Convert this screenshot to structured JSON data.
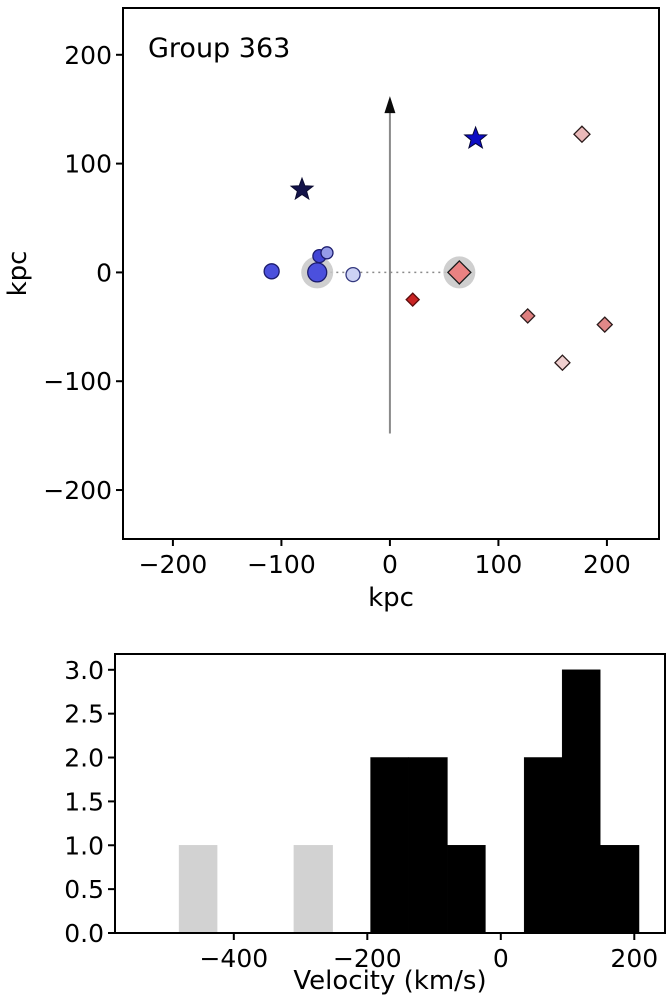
{
  "figure": {
    "background": "#ffffff",
    "title": "Group 363"
  },
  "chart_data": [
    {
      "id": "position-scatter",
      "type": "scatter",
      "title": "Group 363",
      "xlabel": "kpc",
      "ylabel": "kpc",
      "xlim": [
        -246,
        248
      ],
      "ylim": [
        -245,
        243
      ],
      "grid": false,
      "legend": null,
      "xticks": [
        {
          "v": -200,
          "label": "−200"
        },
        {
          "v": -100,
          "label": "−100"
        },
        {
          "v": 0,
          "label": "0"
        },
        {
          "v": 100,
          "label": "100"
        },
        {
          "v": 200,
          "label": "200"
        }
      ],
      "yticks": [
        {
          "v": 200,
          "label": "200"
        },
        {
          "v": 100,
          "label": "100"
        },
        {
          "v": 0,
          "label": "0"
        },
        {
          "v": -100,
          "label": "−100"
        },
        {
          "v": -200,
          "label": "−200"
        }
      ],
      "arrow": {
        "x": 0,
        "y_from": -148,
        "y_to": 162,
        "line_color": "#8a8a8a",
        "head_color": "#0a0a0a"
      },
      "connector": {
        "x0": -66,
        "y0": 0,
        "x1": 64,
        "y1": 0,
        "style": "dotted",
        "color": "#8a8a8a"
      },
      "halo_color": "#c7c7c7",
      "points": [
        {
          "shape": "star",
          "x": -81,
          "y": 76,
          "size": 11.5,
          "fill": "#13134a",
          "edge": "#0b0b30",
          "halo": false
        },
        {
          "shape": "star",
          "x": 79,
          "y": 123,
          "size": 11.5,
          "fill": "#0d0dc4",
          "edge": "#050538",
          "halo": false
        },
        {
          "shape": "circle",
          "x": -109,
          "y": 1,
          "size": 7.5,
          "fill": "#4b50dd",
          "edge": "#1c1c6e",
          "halo": false
        },
        {
          "shape": "circle",
          "x": -67,
          "y": 0,
          "size": 9.5,
          "fill": "#4b50dd",
          "edge": "#1c1c6e",
          "halo": true
        },
        {
          "shape": "circle",
          "x": -65,
          "y": 15,
          "size": 6.5,
          "fill": "#4245d5",
          "edge": "#1c1c6e",
          "halo": false
        },
        {
          "shape": "circle",
          "x": -58,
          "y": 18,
          "size": 6,
          "fill": "#959ce8",
          "edge": "#1c1c6e",
          "halo": false
        },
        {
          "shape": "circle",
          "x": -34,
          "y": -2,
          "size": 7,
          "fill": "#cdd2f4",
          "edge": "#33387e",
          "halo": false
        },
        {
          "shape": "diamond",
          "x": 64,
          "y": 0,
          "size": 11.5,
          "fill": "#e98282",
          "edge": "#1a1a1a",
          "halo": true
        },
        {
          "shape": "diamond",
          "x": 21,
          "y": -25,
          "size": 6.5,
          "fill": "#c92424",
          "edge": "#5a0d0d",
          "halo": false
        },
        {
          "shape": "diamond",
          "x": 127,
          "y": -40,
          "size": 7,
          "fill": "#dd7f7f",
          "edge": "#2b1b1b",
          "halo": false
        },
        {
          "shape": "diamond",
          "x": 198,
          "y": -48,
          "size": 7.5,
          "fill": "#e08888",
          "edge": "#2b1b1b",
          "halo": false
        },
        {
          "shape": "diamond",
          "x": 159,
          "y": -83,
          "size": 7.5,
          "fill": "#f0cfcf",
          "edge": "#2b1b1b",
          "halo": false
        },
        {
          "shape": "diamond",
          "x": 177,
          "y": 127,
          "size": 8,
          "fill": "#eab9b9",
          "edge": "#2b1b1b",
          "halo": false
        }
      ]
    },
    {
      "id": "velocity-histogram",
      "type": "bar",
      "title": "",
      "xlabel": "Velocity (km/s)",
      "ylabel": "",
      "xlim": [
        -578,
        246
      ],
      "ylim": [
        0,
        3.18
      ],
      "grid": false,
      "legend": null,
      "xticks": [
        {
          "v": -400,
          "label": "−400"
        },
        {
          "v": -200,
          "label": "−200"
        },
        {
          "v": 0,
          "label": "0"
        },
        {
          "v": 200,
          "label": "200"
        }
      ],
      "yticks": [
        {
          "v": 3.0,
          "label": "3.0"
        },
        {
          "v": 2.5,
          "label": "2.5"
        },
        {
          "v": 2.0,
          "label": "2.0"
        },
        {
          "v": 1.5,
          "label": "1.5"
        },
        {
          "v": 1.0,
          "label": "1.0"
        },
        {
          "v": 0.5,
          "label": "0.5"
        },
        {
          "v": 0.0,
          "label": "0.0"
        }
      ],
      "colors": {
        "member_bar": "#000000",
        "nonmember_bar": "#d2d2d2"
      },
      "bars": [
        {
          "x0": -482,
          "x1": -425,
          "count": 1,
          "color": "#d2d2d2"
        },
        {
          "x0": -310,
          "x1": -252,
          "count": 1,
          "color": "#d2d2d2"
        },
        {
          "x0": -195,
          "x1": -138,
          "count": 2,
          "color": "#000000"
        },
        {
          "x0": -138,
          "x1": -80,
          "count": 2,
          "color": "#000000"
        },
        {
          "x0": -80,
          "x1": -23,
          "count": 1,
          "color": "#000000"
        },
        {
          "x0": 35,
          "x1": 92,
          "count": 2,
          "color": "#000000"
        },
        {
          "x0": 92,
          "x1": 149,
          "count": 3,
          "color": "#000000"
        },
        {
          "x0": 149,
          "x1": 207,
          "count": 1,
          "color": "#000000"
        }
      ]
    }
  ]
}
